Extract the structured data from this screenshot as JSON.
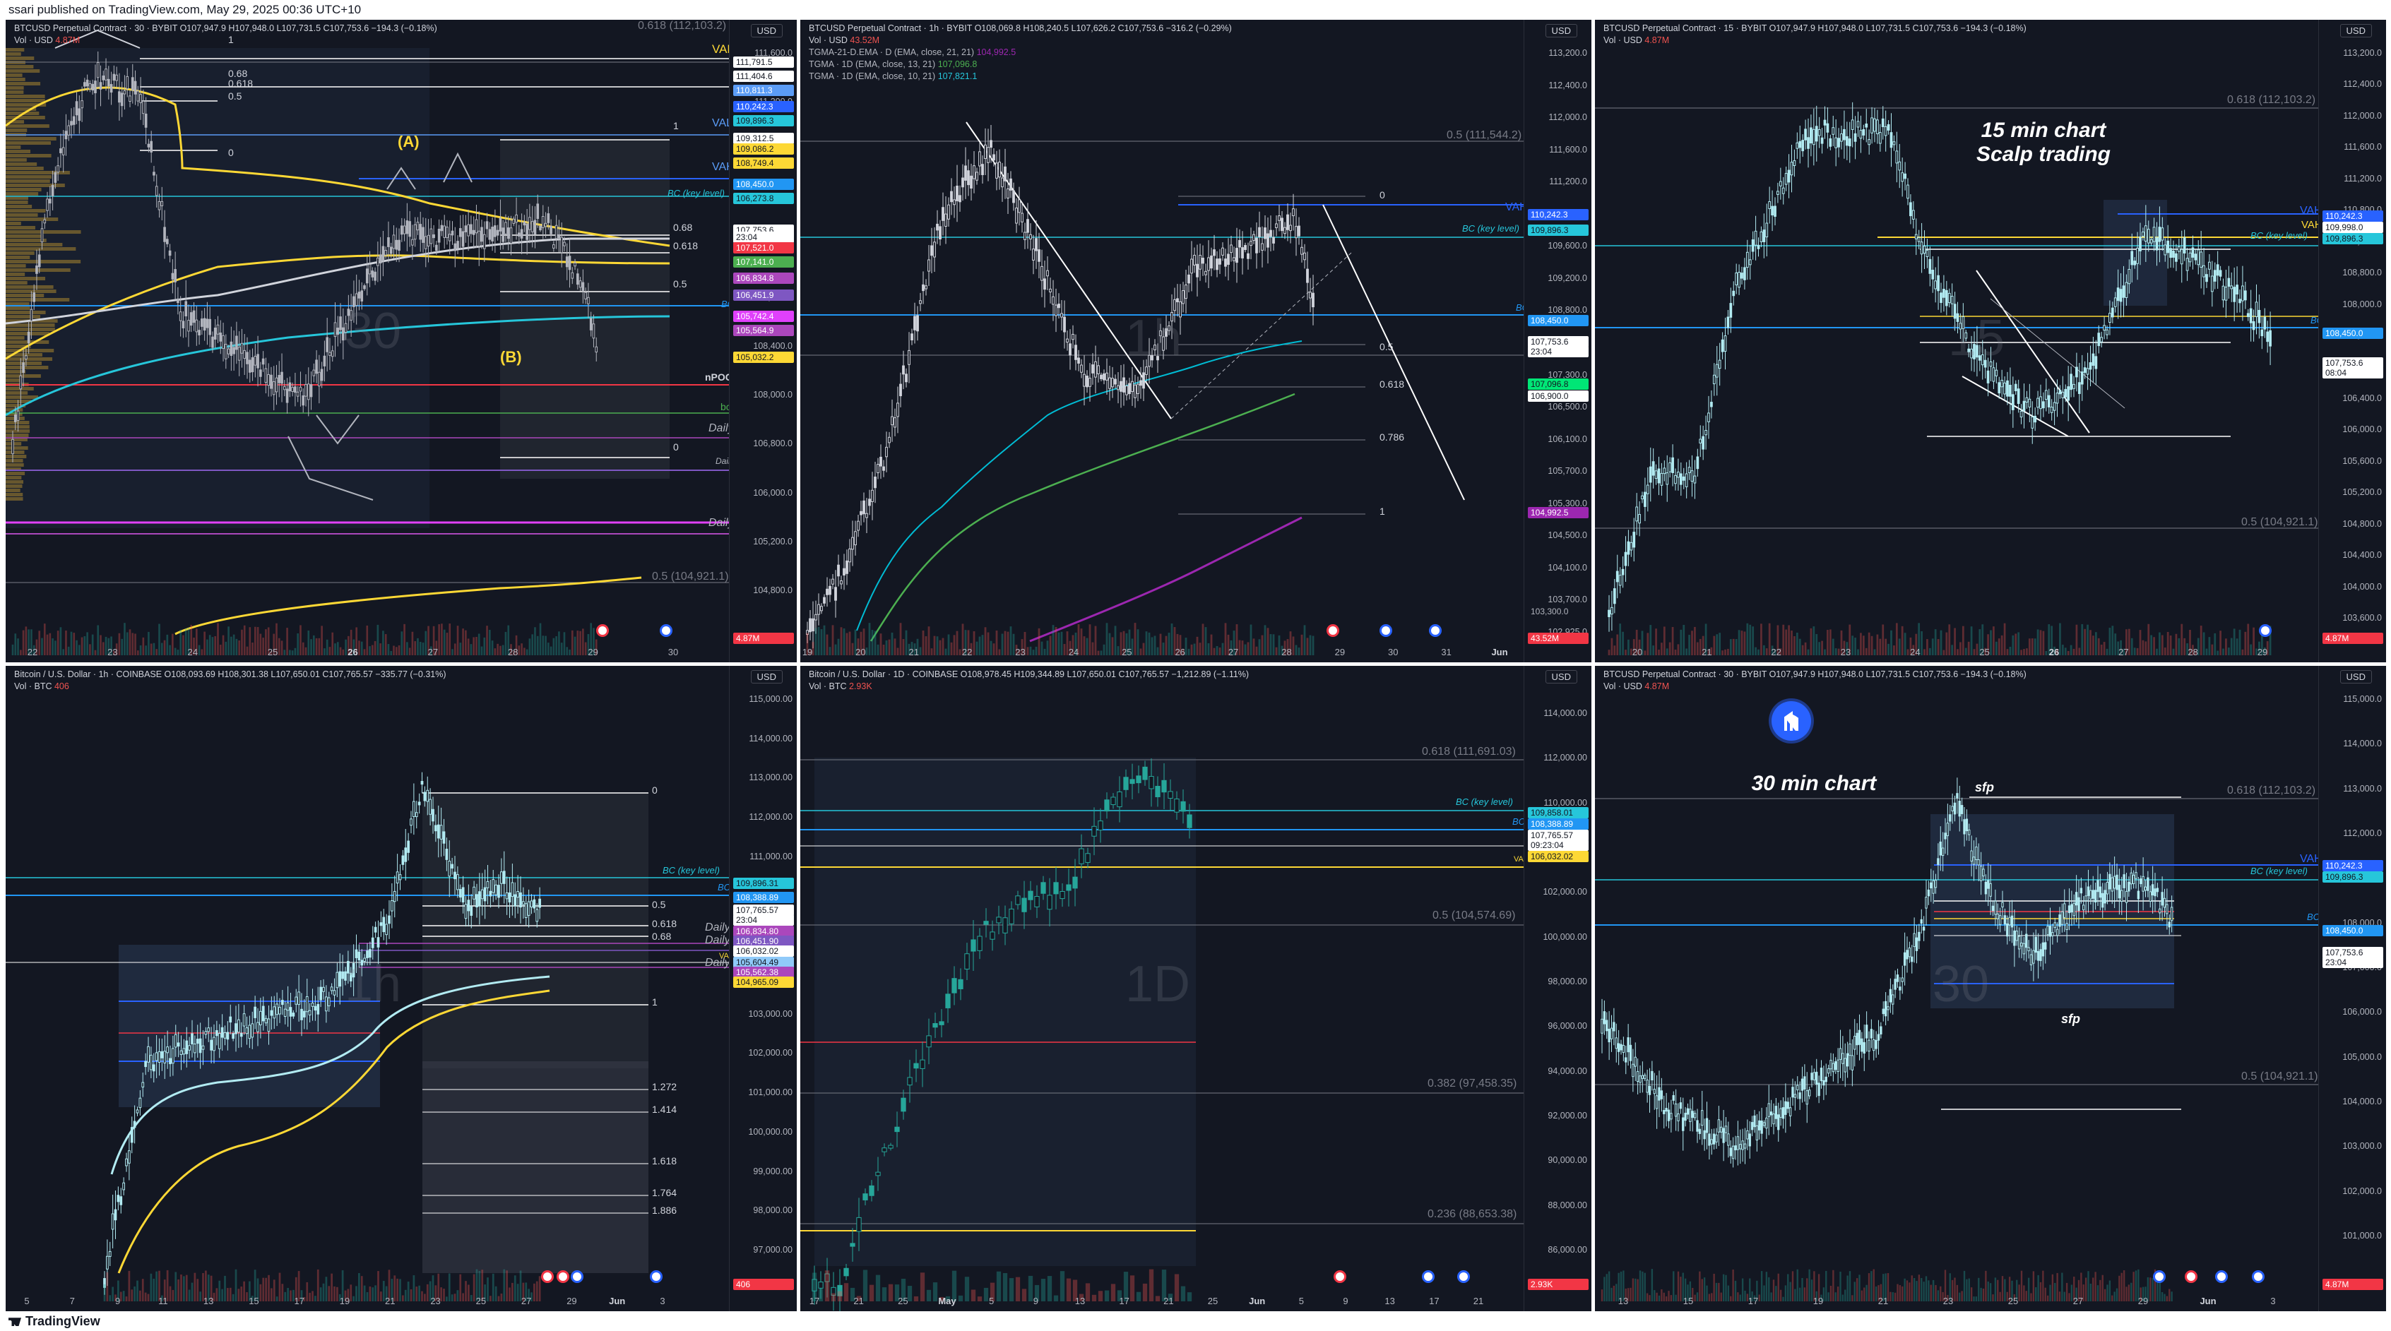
{
  "topbar": {
    "text": "ssari published on TradingView.com, May 29, 2025 00:36 UTC+10"
  },
  "bottombar": {
    "text": "TradingView"
  },
  "panels": [
    {
      "id": "p1",
      "header": "BTCUSD Perpetual Contract · 30 · BYBIT  O107,947.9  H107,948.0  L107,731.5  C107,753.6  −194.3 (−0.18%)",
      "vol_label": "Vol · USD",
      "vol_value": "4.87M",
      "currency": "USD",
      "watermark": "30",
      "price_ticks": [
        "111,600.0",
        "111,200.0",
        "110,400.0",
        "110,000.0",
        "109,600.0",
        "108,800.0",
        "108,400.0",
        "108,000.0",
        "106,800.0",
        "106,000.0",
        "105,200.0",
        "104,800.0",
        "104,400.0"
      ],
      "time_ticks": [
        "22",
        "23",
        "24",
        "25",
        "26",
        "27",
        "28",
        "29",
        "30"
      ],
      "time_bold": "26",
      "badges": [
        {
          "text": "111,791.5",
          "bg": "#ffffff",
          "fg": "#131722"
        },
        {
          "text": "111,404.6",
          "bg": "#ffffff",
          "fg": "#131722"
        },
        {
          "text": "110,811.3",
          "bg": "#5b9cf6",
          "fg": "#ffffff"
        },
        {
          "text": "110,242.3",
          "bg": "#2962ff",
          "fg": "#ffffff"
        },
        {
          "text": "109,896.3",
          "bg": "#26c6da",
          "fg": "#131722"
        },
        {
          "text": "109,312.5",
          "bg": "#ffffff",
          "fg": "#131722"
        },
        {
          "text": "109,086.2",
          "bg": "#fdd835",
          "fg": "#131722"
        },
        {
          "text": "108,749.4",
          "bg": "#fdd835",
          "fg": "#131722"
        },
        {
          "text": "108,450.0",
          "bg": "#2196f3",
          "fg": "#ffffff"
        },
        {
          "text": "106,273.8",
          "bg": "#26c6da",
          "fg": "#131722"
        },
        {
          "text": "107,753.6",
          "bg": "#ffffff",
          "fg": "#131722"
        },
        {
          "text": "23:04",
          "bg": "#ffffff",
          "fg": "#131722"
        },
        {
          "text": "107,521.0",
          "bg": "#f23645",
          "fg": "#ffffff"
        },
        {
          "text": "107,141.0",
          "bg": "#4caf50",
          "fg": "#ffffff"
        },
        {
          "text": "106,834.8",
          "bg": "#ab47bc",
          "fg": "#ffffff"
        },
        {
          "text": "106,451.9",
          "bg": "#7e57c2",
          "fg": "#ffffff"
        },
        {
          "text": "105,742.4",
          "bg": "#e040fb",
          "fg": "#ffffff"
        },
        {
          "text": "105,564.9",
          "bg": "#ab47bc",
          "fg": "#ffffff"
        },
        {
          "text": "105,032.2",
          "bg": "#fdd835",
          "fg": "#131722"
        },
        {
          "text": "4.87M",
          "bg": "#f23645",
          "fg": "#ffffff"
        }
      ],
      "levels": {
        "vah": "VAH",
        "val": "VAL",
        "vah2": "VAH",
        "bc_key": "BC (key level)",
        "bc": "BC",
        "npoc": "nPOC",
        "bc_small": "bc",
        "daily1": "Daily",
        "daily2": "Daily",
        "daily3": "Daily",
        "fib_top": "0.618 (112,103.2)",
        "fib_bottom": "0.5 (104,921.1)",
        "f068": "0.68",
        "f0618": "0.618",
        "f05": "0.5",
        "f0": "0",
        "f1": "1",
        "r068": "0.68",
        "r0618": "0.618",
        "r05": "0.5",
        "r0": "0",
        "r1": "1",
        "label_a": "(A)",
        "label_b": "(B)"
      }
    },
    {
      "id": "p2",
      "header": "BTCUSD Perpetual Contract · 1h · BYBIT  O108,069.8  H108,240.5  L107,626.2  C107,753.6  −316.2 (−0.29%)",
      "vol_label": "Vol · USD",
      "vol_value": "43.52M",
      "ema1": "TGMA-21-D.EMA · D (EMA, close, 21, 21)",
      "ema1_val": "104,992.5",
      "ema2": "TGMA · 1D (EMA, close, 13, 21)",
      "ema2_val": "107,096.8",
      "ema3": "TGMA · 1D (EMA, close, 10, 21)",
      "ema3_val": "107,821.1",
      "currency": "USD",
      "watermark": "1h",
      "price_ticks": [
        "113,200.0",
        "112,400.0",
        "112,000.0",
        "111,600.0",
        "111,200.0",
        "110,800.0",
        "109,600.0",
        "109,200.0",
        "108,800.0",
        "108,000.0",
        "107,300.0",
        "106,500.0",
        "106,100.0",
        "105,700.0",
        "105,300.0",
        "104,500.0",
        "104,100.0",
        "103,700.0",
        "102,925.0"
      ],
      "time_ticks": [
        "19",
        "20",
        "21",
        "22",
        "23",
        "24",
        "25",
        "26",
        "27",
        "28",
        "29",
        "30",
        "31",
        "Jun"
      ],
      "badges": [
        {
          "text": "110,242.3",
          "bg": "#2962ff",
          "fg": "#ffffff"
        },
        {
          "text": "109,896.3",
          "bg": "#26c6da",
          "fg": "#131722"
        },
        {
          "text": "108,450.0",
          "bg": "#2196f3",
          "fg": "#ffffff"
        },
        {
          "text": "107,753.6",
          "bg": "#ffffff",
          "fg": "#131722"
        },
        {
          "text": "23:04",
          "bg": "#ffffff",
          "fg": "#131722"
        },
        {
          "text": "107,096.8",
          "bg": "#00e676",
          "fg": "#131722"
        },
        {
          "text": "106,900.0",
          "bg": "#ffffff",
          "fg": "#131722"
        },
        {
          "text": "104,992.5",
          "bg": "#9c27b0",
          "fg": "#ffffff"
        },
        {
          "text": "103,300.0",
          "bg": "#131722",
          "fg": "#b2b5be"
        },
        {
          "text": "43.52M",
          "bg": "#f23645",
          "fg": "#ffffff"
        }
      ],
      "levels": {
        "fib_top": "0.5 (111,544.2)",
        "vah": "VAH",
        "bc_key": "BC (key level)",
        "bc": "BC",
        "f0": "0",
        "f05": "0.5",
        "f0618": "0.618",
        "f0786": "0.786",
        "f1": "1"
      }
    },
    {
      "id": "p3",
      "header": "BTCUSD Perpetual Contract · 15 · BYBIT  O107,947.9  H107,948.0  L107,731.5  C107,753.6  −194.3 (−0.18%)",
      "vol_label": "Vol · USD",
      "vol_value": "4.87M",
      "currency": "USD",
      "watermark": "15",
      "note": "15 min chart\nScalp trading",
      "price_ticks": [
        "113,200.0",
        "112,400.0",
        "112,000.0",
        "111,600.0",
        "111,200.0",
        "110,800.0",
        "109,200.0",
        "108,800.0",
        "108,000.0",
        "107,200.0",
        "106,800.0",
        "106,400.0",
        "106,000.0",
        "105,600.0",
        "105,200.0",
        "104,800.0",
        "104,400.0",
        "104,000.0",
        "103,600.0"
      ],
      "time_ticks": [
        "20",
        "21",
        "22",
        "23",
        "24",
        "25",
        "26",
        "27",
        "28",
        "29"
      ],
      "time_bold": "26",
      "badges": [
        {
          "text": "110,242.3",
          "bg": "#2962ff",
          "fg": "#ffffff"
        },
        {
          "text": "109,998.0",
          "bg": "#ffffff",
          "fg": "#131722"
        },
        {
          "text": "109,896.3",
          "bg": "#26c6da",
          "fg": "#131722"
        },
        {
          "text": "108,450.0",
          "bg": "#2196f3",
          "fg": "#ffffff"
        },
        {
          "text": "107,753.6",
          "bg": "#ffffff",
          "fg": "#131722"
        },
        {
          "text": "08:04",
          "bg": "#ffffff",
          "fg": "#131722"
        },
        {
          "text": "4.87M",
          "bg": "#f23645",
          "fg": "#ffffff"
        }
      ],
      "levels": {
        "fib_top": "0.618 (112,103.2)",
        "fib_bottom": "0.5 (104,921.1)",
        "vah": "VAH",
        "vah2": "VAH",
        "bc_key": "BC (key level)",
        "bc": "BC"
      }
    },
    {
      "id": "p4",
      "header": "Bitcoin / U.S. Dollar · 1h · COINBASE  O108,093.69  H108,301.38  L107,650.01  C107,765.57  −335.77 (−0.31%)",
      "vol_label": "Vol · BTC",
      "vol_value": "406",
      "currency": "USD",
      "watermark": "1h",
      "price_ticks": [
        "115,000.00",
        "114,000.00",
        "113,000.00",
        "112,000.00",
        "111,000.00",
        "110,000.00",
        "109,000.00",
        "104,000.00",
        "103,000.00",
        "102,000.00",
        "101,000.00",
        "100,000.00",
        "99,000.00",
        "98,000.00",
        "97,000.00"
      ],
      "time_ticks": [
        "5",
        "7",
        "9",
        "11",
        "13",
        "15",
        "17",
        "19",
        "21",
        "23",
        "25",
        "27",
        "29",
        "Jun",
        "3"
      ],
      "badges": [
        {
          "text": "109,896.31",
          "bg": "#26c6da",
          "fg": "#131722"
        },
        {
          "text": "108,388.89",
          "bg": "#2196f3",
          "fg": "#ffffff"
        },
        {
          "text": "107,765.57",
          "bg": "#ffffff",
          "fg": "#131722"
        },
        {
          "text": "23:04",
          "bg": "#ffffff",
          "fg": "#131722"
        },
        {
          "text": "106,834.80",
          "bg": "#ab47bc",
          "fg": "#ffffff"
        },
        {
          "text": "106,451.90",
          "bg": "#7e57c2",
          "fg": "#ffffff"
        },
        {
          "text": "106,032.02",
          "bg": "#ffffff",
          "fg": "#131722"
        },
        {
          "text": "105,604.49",
          "bg": "#90caf9",
          "fg": "#131722"
        },
        {
          "text": "105,562.38",
          "bg": "#ab47bc",
          "fg": "#ffffff"
        },
        {
          "text": "104,965.09",
          "bg": "#fdd835",
          "fg": "#131722"
        },
        {
          "text": "406",
          "bg": "#f23645",
          "fg": "#ffffff"
        }
      ],
      "levels": {
        "bc_key": "BC (key level)",
        "bc": "BC",
        "vah": "VAH",
        "daily1": "Daily",
        "daily2": "Daily",
        "daily3": "Daily",
        "f0": "0",
        "f05": "0.5",
        "f0618": "0.618",
        "f068": "0.68",
        "f1": "1",
        "f1272": "1.272",
        "f1414": "1.414",
        "f1618": "1.618",
        "f1764": "1.764",
        "f1886": "1.886"
      }
    },
    {
      "id": "p5",
      "header": "Bitcoin / U.S. Dollar · 1D · COINBASE  O108,978.45  H109,344.89  L107,650.01  C107,765.57  −1,212.89 (−1.11%)",
      "vol_label": "Vol · BTC",
      "vol_value": "2.93K",
      "currency": "USD",
      "watermark": "1D",
      "price_ticks": [
        "114,000.00",
        "112,000.00",
        "110,000.00",
        "104,000.00",
        "102,000.00",
        "100,000.00",
        "98,000.00",
        "96,000.00",
        "94,000.00",
        "92,000.00",
        "90,000.00",
        "88,000.00",
        "86,000.00"
      ],
      "time_ticks": [
        "17",
        "21",
        "25",
        "May",
        "5",
        "9",
        "13",
        "17",
        "21",
        "25",
        "Jun",
        "5",
        "9",
        "13",
        "17",
        "21"
      ],
      "badges": [
        {
          "text": "109,858.01",
          "bg": "#26c6da",
          "fg": "#131722"
        },
        {
          "text": "108,388.89",
          "bg": "#2196f3",
          "fg": "#ffffff"
        },
        {
          "text": "107,765.57",
          "bg": "#ffffff",
          "fg": "#131722"
        },
        {
          "text": "09:23:04",
          "bg": "#ffffff",
          "fg": "#131722"
        },
        {
          "text": "106,032.02",
          "bg": "#fdd835",
          "fg": "#131722"
        },
        {
          "text": "2.93K",
          "bg": "#f23645",
          "fg": "#ffffff"
        }
      ],
      "levels": {
        "fib0618": "0.618 (111,691.03)",
        "fib05": "0.5 (104,574.69)",
        "fib0382": "0.382 (97,458.35)",
        "fib0236": "0.236 (88,653.38)",
        "bc_key": "BC (key level)",
        "bc": "BC",
        "vah": "VAH"
      }
    },
    {
      "id": "p6",
      "header": "BTCUSD Perpetual Contract · 30 · BYBIT  O107,947.9  H107,948.0  L107,731.5  C107,753.6  −194.3 (−0.18%)",
      "vol_label": "Vol · USD",
      "vol_value": "4.87M",
      "currency": "USD",
      "watermark": "30",
      "note": "30 min chart",
      "price_ticks": [
        "115,000.0",
        "114,000.0",
        "113,000.0",
        "112,000.0",
        "111,000.0",
        "108,000.0",
        "107,000.0",
        "106,000.0",
        "105,000.0",
        "104,000.0",
        "103,000.0",
        "102,000.0",
        "101,000.0"
      ],
      "time_ticks": [
        "13",
        "15",
        "17",
        "19",
        "21",
        "23",
        "25",
        "27",
        "29",
        "Jun",
        "3"
      ],
      "badges": [
        {
          "text": "110,242.3",
          "bg": "#2962ff",
          "fg": "#ffffff"
        },
        {
          "text": "109,896.3",
          "bg": "#26c6da",
          "fg": "#131722"
        },
        {
          "text": "108,450.0",
          "bg": "#2196f3",
          "fg": "#ffffff"
        },
        {
          "text": "107,753.6",
          "bg": "#ffffff",
          "fg": "#131722"
        },
        {
          "text": "23:04",
          "bg": "#ffffff",
          "fg": "#131722"
        },
        {
          "text": "4.87M",
          "bg": "#f23645",
          "fg": "#ffffff"
        }
      ],
      "levels": {
        "fib_top": "0.618 (112,103.2)",
        "fib_bottom": "0.5 (104,921.1)",
        "vah": "VAH",
        "bc_key": "BC (key level)",
        "bc": "BC",
        "sfp1": "sfp",
        "sfp2": "sfp"
      }
    }
  ]
}
